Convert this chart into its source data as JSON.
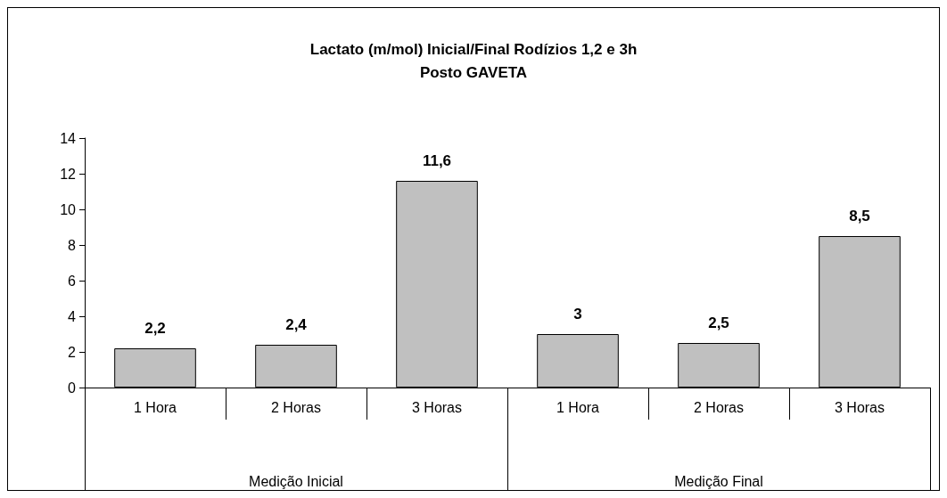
{
  "chart_data": {
    "type": "bar",
    "title": "Lactato (m/mol) Inicial/Final Rodízios 1,2 e 3h\nPosto GAVETA",
    "categories": [
      "1 Hora",
      "2 Horas",
      "3 Horas",
      "1 Hora",
      "2 Horas",
      "3 Horas"
    ],
    "values": [
      2.2,
      2.4,
      11.6,
      3,
      2.5,
      8.5
    ],
    "value_labels": [
      "2,2",
      "2,4",
      "11,6",
      "3",
      "2,5",
      "8,5"
    ],
    "color": "#c0c0c0",
    "annotations": [
      "Medição Inicial",
      "Medição Final"
    ],
    "ylim": [
      0,
      14
    ],
    "yticks": [
      0,
      2,
      4,
      6,
      8,
      10,
      12,
      14
    ],
    "grid": false
  }
}
